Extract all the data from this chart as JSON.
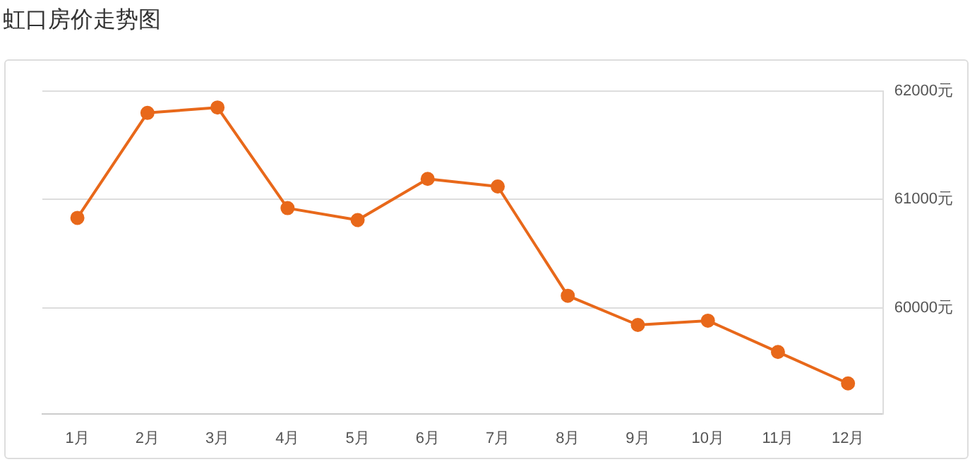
{
  "chart_data": {
    "type": "line",
    "title": "虹口房价走势图",
    "categories": [
      "1月",
      "2月",
      "3月",
      "4月",
      "5月",
      "6月",
      "7月",
      "8月",
      "9月",
      "10月",
      "11月",
      "12月"
    ],
    "series": [
      {
        "color": "#e8681a",
        "values": [
          60830,
          61800,
          61850,
          60920,
          60810,
          61190,
          61120,
          60110,
          59840,
          59880,
          59590,
          59300
        ]
      }
    ],
    "ylim": [
      59020,
      62000
    ],
    "yticks": [
      {
        "value": 60000,
        "label": "60000元"
      },
      {
        "value": 61000,
        "label": "61000元"
      },
      {
        "value": 62000,
        "label": "62000元"
      }
    ],
    "grid": "y",
    "marker": "circle",
    "line_style": "solid",
    "legend": false
  }
}
